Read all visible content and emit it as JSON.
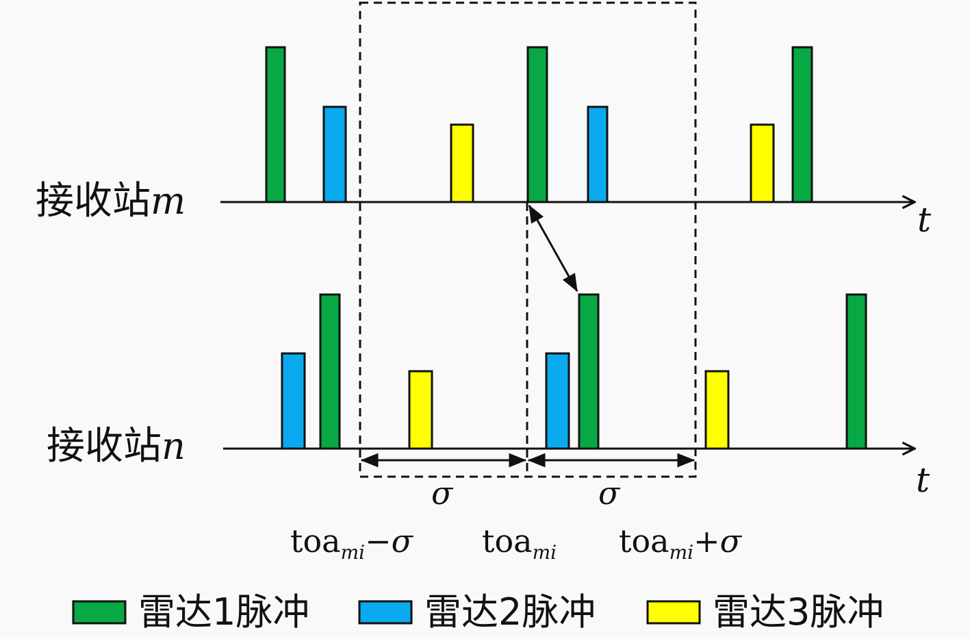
{
  "stations": {
    "m": {
      "label": "接收站",
      "var": "m"
    },
    "n": {
      "label": "接收站",
      "var": "n"
    }
  },
  "axis_label": "t",
  "sigma": "σ",
  "ticks": {
    "left": {
      "base": "toa",
      "sub": "mi",
      "suffix": "−σ"
    },
    "center": {
      "base": "toa",
      "sub": "mi",
      "suffix": ""
    },
    "right": {
      "base": "toa",
      "sub": "mi",
      "suffix": "+σ"
    }
  },
  "legend": [
    {
      "label": "雷达1脉冲",
      "color": "#08a845"
    },
    {
      "label": "雷达2脉冲",
      "color": "#0aaaee"
    },
    {
      "label": "雷达3脉冲",
      "color": "#ffff00"
    }
  ],
  "colors": {
    "radar1": "#08a845",
    "radar2": "#0aaaee",
    "radar3": "#ffff00",
    "stroke": "#111111"
  }
}
